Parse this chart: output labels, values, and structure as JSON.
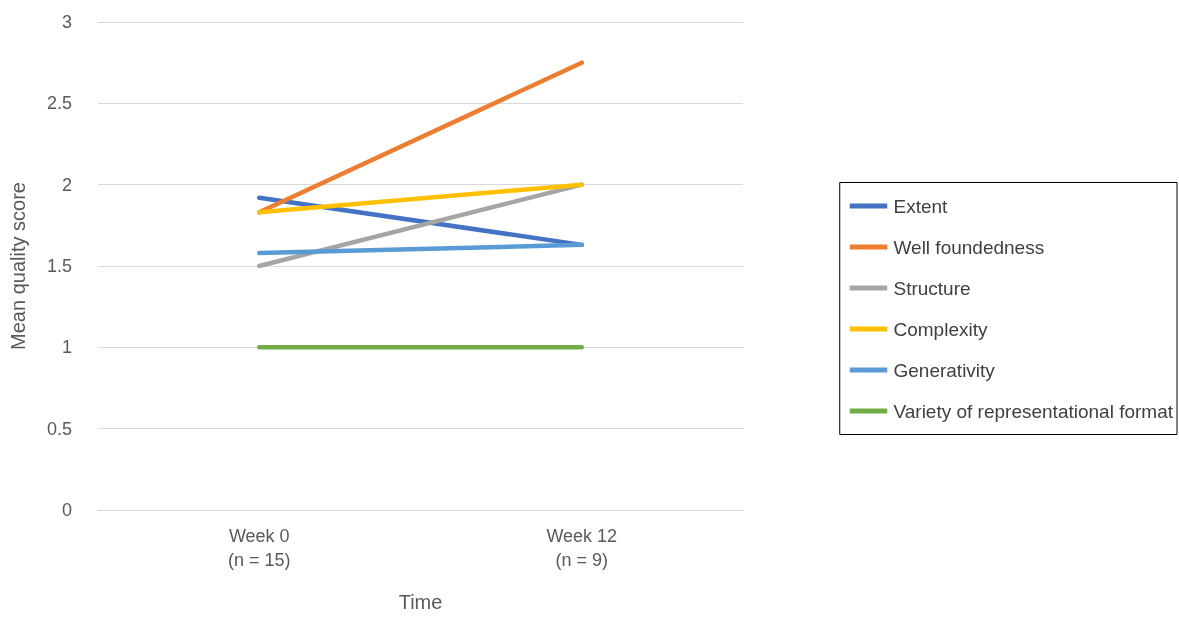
{
  "chart_data": {
    "type": "line",
    "xlabel": "Time",
    "ylabel": "Mean quality score",
    "categories": [
      "Week 0\n(n = 15)",
      "Week 12\n(n = 9)"
    ],
    "series": [
      {
        "name": "Extent",
        "color": "#4472c4",
        "values": [
          1.92,
          1.63
        ]
      },
      {
        "name": "Well foundedness",
        "color": "#ed7d31",
        "values": [
          1.83,
          2.75
        ]
      },
      {
        "name": "Structure",
        "color": "#a5a5a5",
        "values": [
          1.5,
          2.0
        ]
      },
      {
        "name": "Complexity",
        "color": "#ffc000",
        "values": [
          1.83,
          2.0
        ]
      },
      {
        "name": "Generativity",
        "color": "#5b9bd5",
        "values": [
          1.58,
          1.63
        ]
      },
      {
        "name": "Variety of representational format",
        "color": "#70ad47",
        "values": [
          1.0,
          1.0
        ]
      }
    ],
    "ylim": [
      0,
      3
    ],
    "yticks": [
      0,
      0.5,
      1,
      1.5,
      2,
      2.5,
      3
    ],
    "grid": "y",
    "legend": "right",
    "marker": "none",
    "line_style": "solid"
  }
}
